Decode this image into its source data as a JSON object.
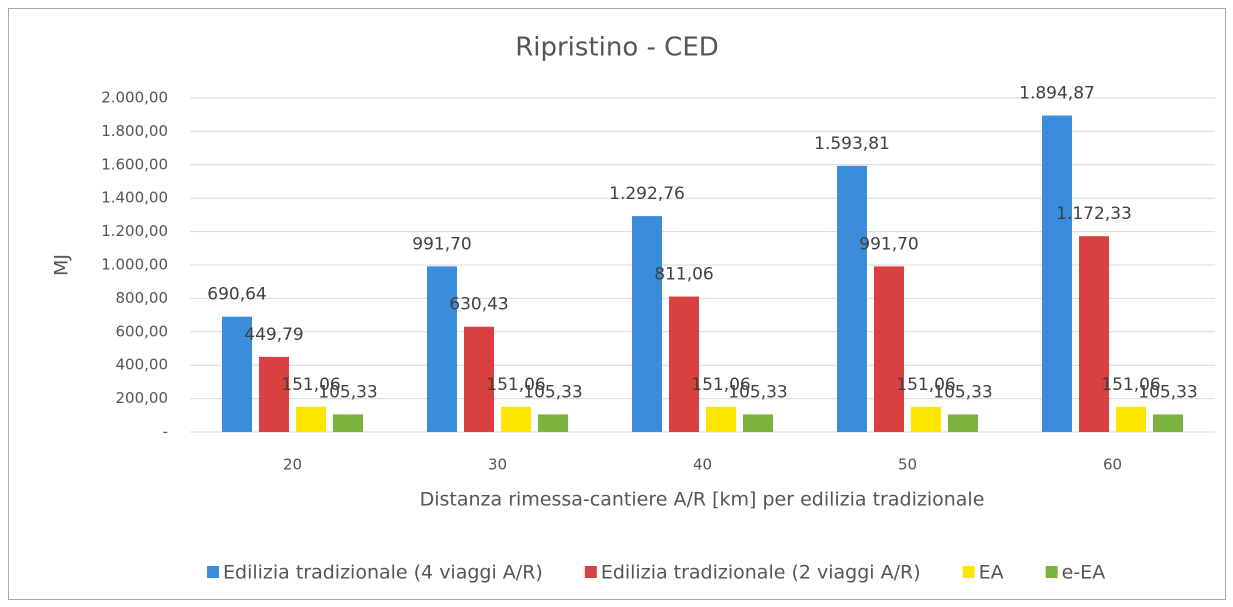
{
  "chart_data": {
    "type": "bar",
    "title": "Ripristino - CED",
    "x_label": "Distanza rimessa-cantiere A/R [km] per edilizia tradizionale",
    "y_label": "MJ",
    "categories": [
      "20",
      "30",
      "40",
      "50",
      "60"
    ],
    "series": [
      {
        "name": "Edilizia tradizionale (4 viaggi A/R)",
        "color": "#3b8ddc",
        "values": [
          690.64,
          991.7,
          1292.76,
          1593.81,
          1894.87
        ],
        "value_labels": [
          "690,64",
          "991,70",
          "1.292,76",
          "1.593,81",
          "1.894,87"
        ]
      },
      {
        "name": "Edilizia tradizionale (2 viaggi A/R)",
        "color": "#d8413f",
        "values": [
          449.79,
          630.43,
          811.06,
          991.7,
          1172.33
        ],
        "value_labels": [
          "449,79",
          "630,43",
          "811,06",
          "991,70",
          "1.172,33"
        ]
      },
      {
        "name": "EA",
        "color": "#ffe600",
        "values": [
          151.06,
          151.06,
          151.06,
          151.06,
          151.06
        ],
        "value_labels": [
          "151,06",
          "151,06",
          "151,06",
          "151,06",
          "151,06"
        ]
      },
      {
        "name": "e-EA",
        "color": "#7bb33e",
        "values": [
          105.33,
          105.33,
          105.33,
          105.33,
          105.33
        ],
        "value_labels": [
          "105,33",
          "105,33",
          "105,33",
          "105,33",
          "105,33"
        ]
      }
    ],
    "ylim": [
      0,
      2000
    ],
    "yticks": [
      {
        "value": 0,
        "label": "-"
      },
      {
        "value": 200,
        "label": "200,00"
      },
      {
        "value": 400,
        "label": "400,00"
      },
      {
        "value": 600,
        "label": "600,00"
      },
      {
        "value": 800,
        "label": "800,00"
      },
      {
        "value": 1000,
        "label": "1.000,00"
      },
      {
        "value": 1200,
        "label": "1.200,00"
      },
      {
        "value": 1400,
        "label": "1.400,00"
      },
      {
        "value": 1600,
        "label": "1.600,00"
      },
      {
        "value": 1800,
        "label": "1.800,00"
      },
      {
        "value": 2000,
        "label": "2.000,00"
      }
    ],
    "grid": true,
    "legend": "bottom"
  }
}
